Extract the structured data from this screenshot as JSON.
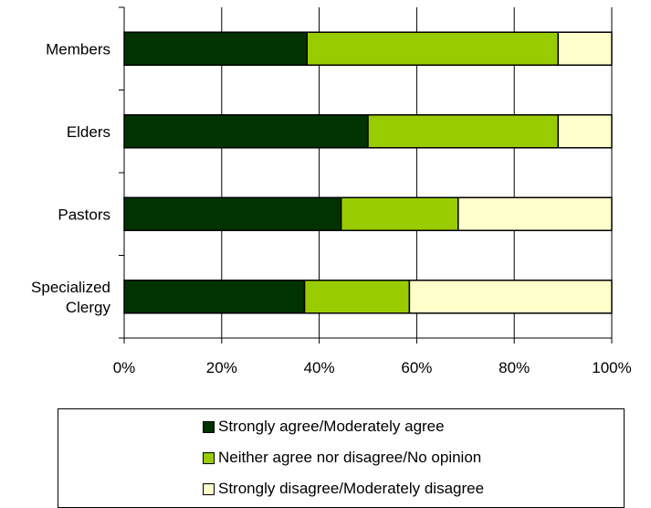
{
  "chart_data": {
    "type": "bar",
    "orientation": "horizontal",
    "stacked": true,
    "percent": true,
    "categories": [
      "Members",
      "Elders",
      "Pastors",
      [
        "Specialized",
        "Clergy"
      ]
    ],
    "series": [
      {
        "name": "Strongly agree/Moderately agree",
        "color": "#003300",
        "values": [
          37.5,
          50,
          44.5,
          37
        ]
      },
      {
        "name": "Neither agree nor disagree/No opinion",
        "color": "#99cc00",
        "values": [
          51.5,
          39,
          24,
          21.5
        ]
      },
      {
        "name": "Strongly disagree/Moderately disagree",
        "color": "#ffffcc",
        "values": [
          11,
          11,
          31.5,
          41.5
        ]
      }
    ],
    "xticks": [
      "0%",
      "20%",
      "40%",
      "60%",
      "80%",
      "100%"
    ],
    "xlim": [
      0,
      100
    ],
    "grid": true,
    "legend_position": "bottom"
  }
}
